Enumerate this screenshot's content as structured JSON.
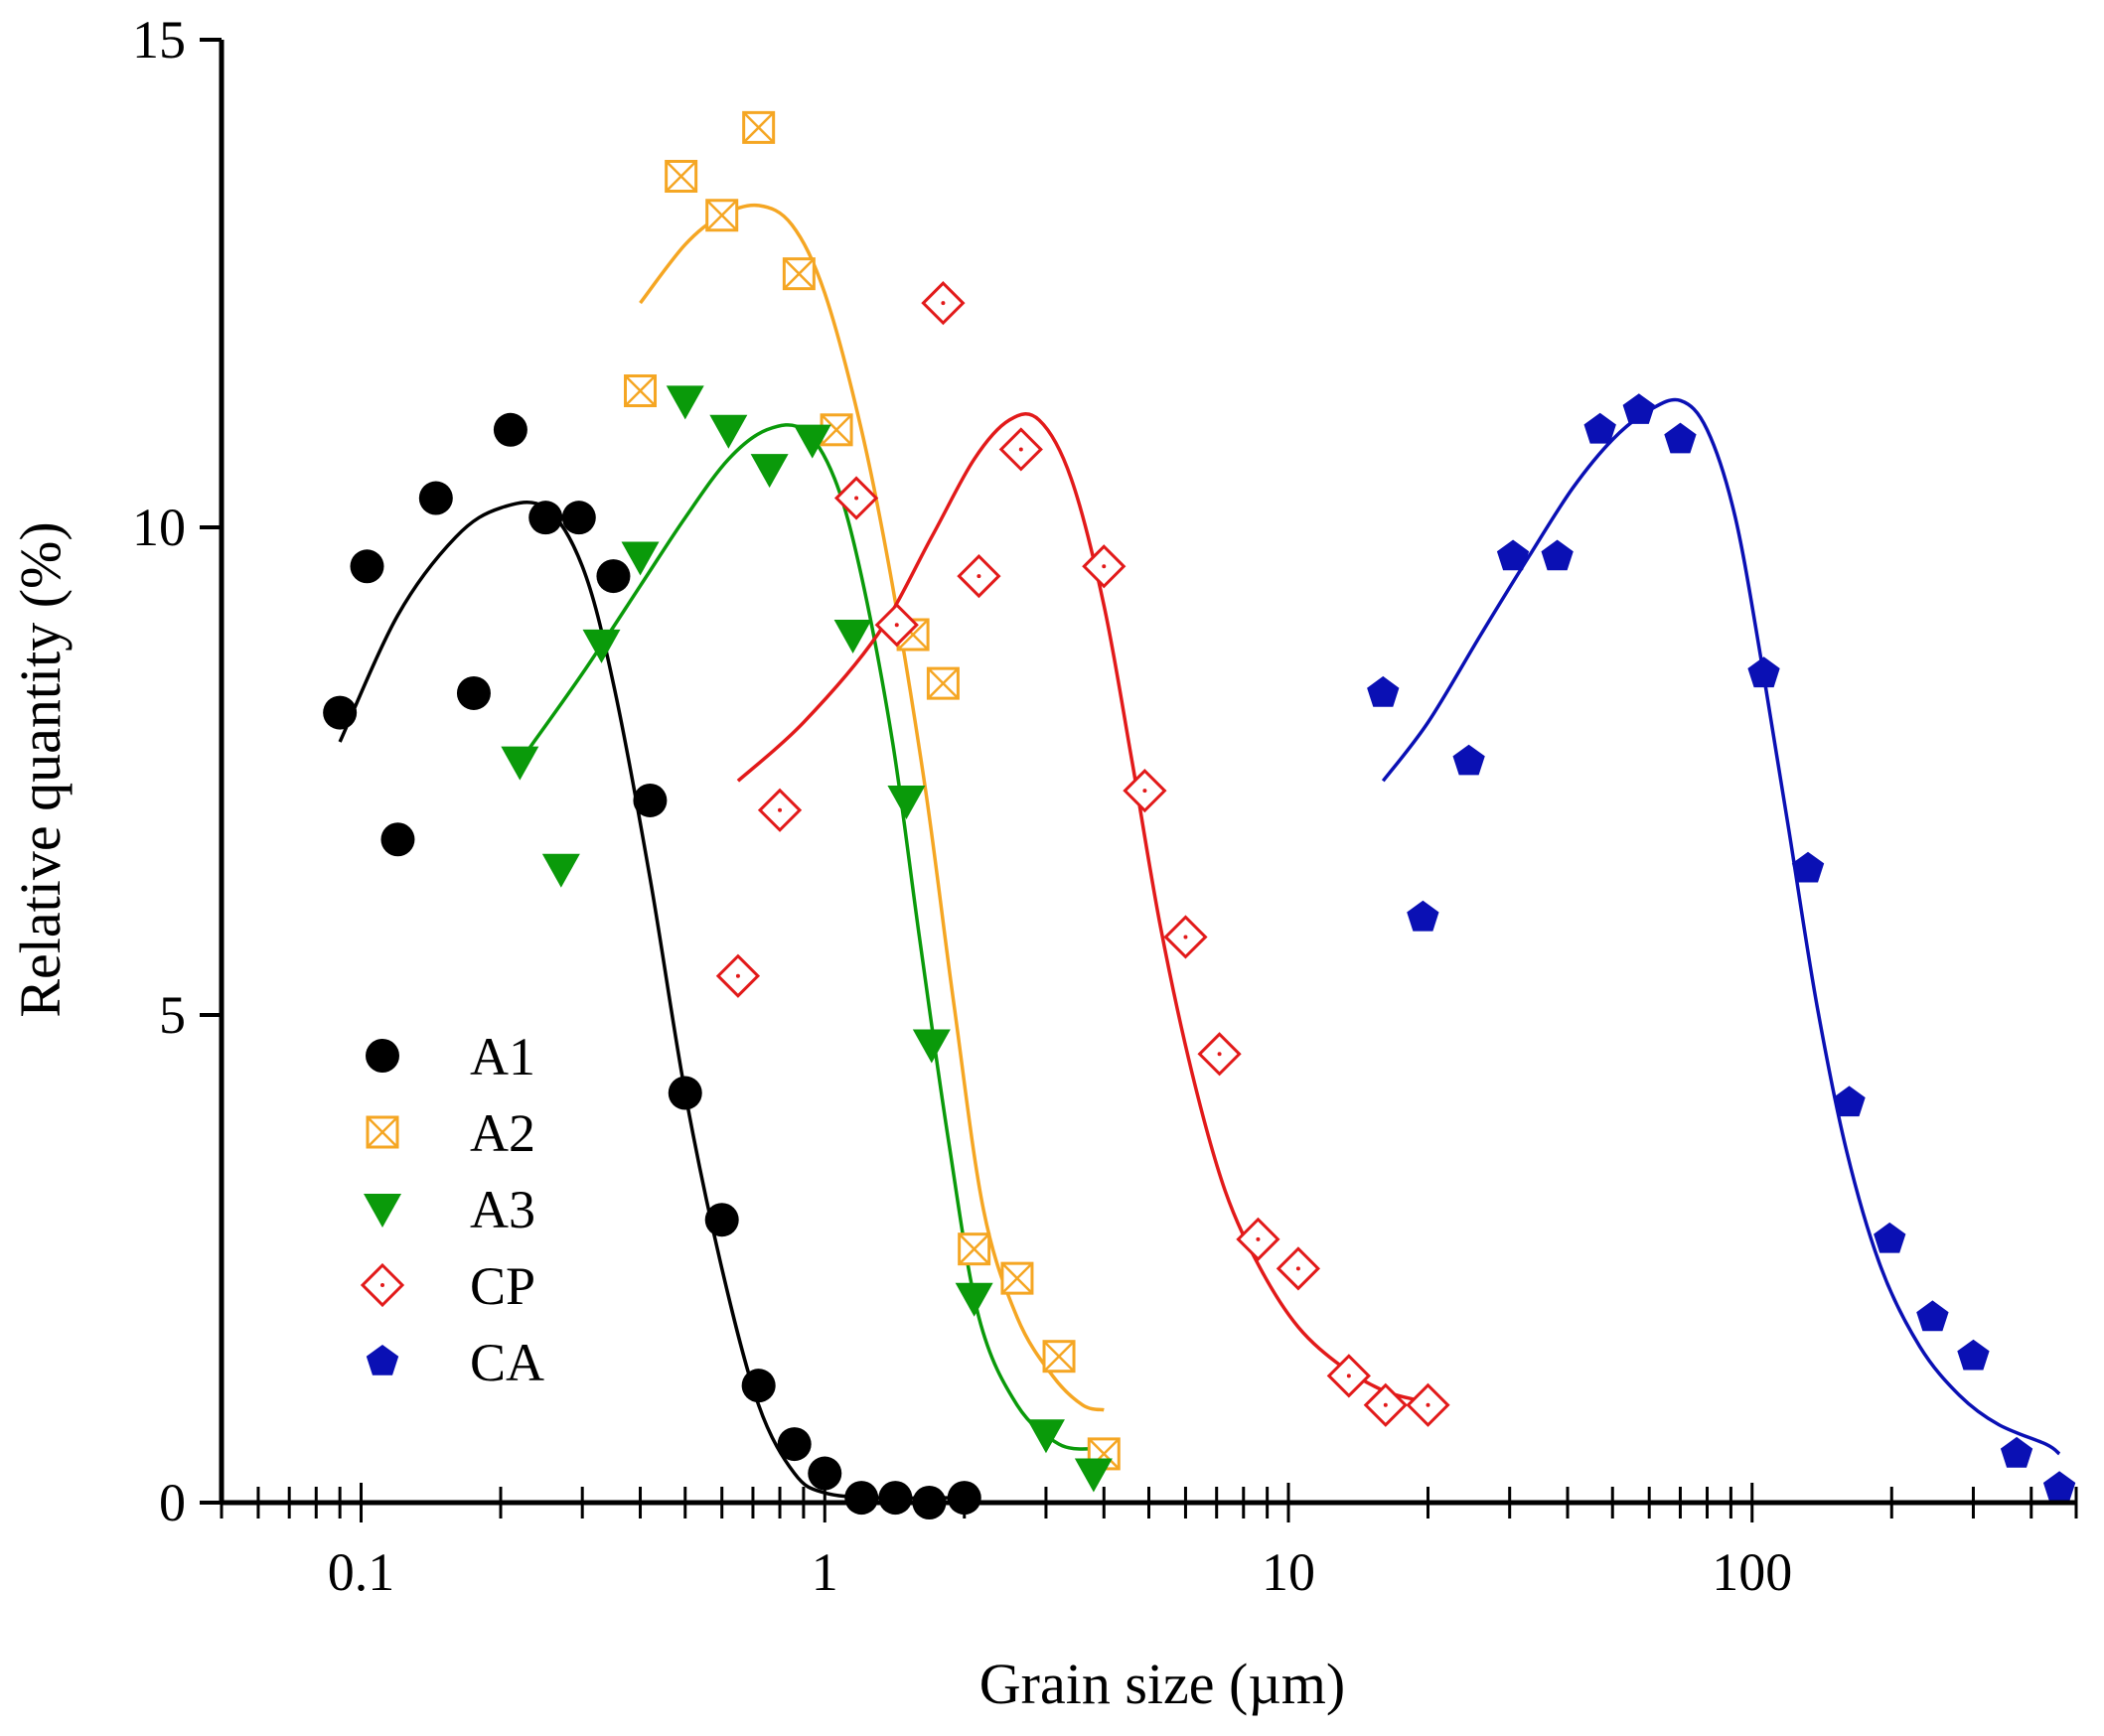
{
  "chart_data": {
    "type": "scatter",
    "title": "",
    "xlabel": "Grain size (µm)",
    "ylabel": "Relative quantity (%)",
    "xscale": "log",
    "xlim": [
      0.05,
      500
    ],
    "ylim": [
      0,
      15
    ],
    "x_ticks": [
      {
        "value": 0.1,
        "label": "0.1"
      },
      {
        "value": 1,
        "label": "1"
      },
      {
        "value": 10,
        "label": "10"
      },
      {
        "value": 100,
        "label": "100"
      }
    ],
    "y_ticks": [
      {
        "value": 0,
        "label": "0"
      },
      {
        "value": 5,
        "label": "5"
      },
      {
        "value": 10,
        "label": "10"
      },
      {
        "value": 15,
        "label": "15"
      }
    ],
    "grid": false,
    "legend_position": "middle-left",
    "series": [
      {
        "name": "A1",
        "marker": "circle-filled",
        "color": "#000000",
        "points": [
          [
            0.09,
            8.1
          ],
          [
            0.103,
            9.6
          ],
          [
            0.12,
            6.8
          ],
          [
            0.145,
            10.3
          ],
          [
            0.175,
            8.3
          ],
          [
            0.21,
            11.0
          ],
          [
            0.25,
            10.1
          ],
          [
            0.295,
            10.1
          ],
          [
            0.35,
            9.5
          ],
          [
            0.42,
            7.2
          ],
          [
            0.5,
            4.2
          ],
          [
            0.6,
            2.9
          ],
          [
            0.72,
            1.2
          ],
          [
            0.86,
            0.6
          ],
          [
            1.0,
            0.3
          ],
          [
            1.2,
            0.05
          ],
          [
            1.42,
            0.05
          ],
          [
            1.68,
            0.0
          ],
          [
            2.0,
            0.05
          ]
        ],
        "fit": [
          [
            0.09,
            7.8
          ],
          [
            0.12,
            9.1
          ],
          [
            0.16,
            9.9
          ],
          [
            0.2,
            10.2
          ],
          [
            0.25,
            10.2
          ],
          [
            0.3,
            9.6
          ],
          [
            0.35,
            8.4
          ],
          [
            0.42,
            6.4
          ],
          [
            0.5,
            4.2
          ],
          [
            0.6,
            2.4
          ],
          [
            0.72,
            1.0
          ],
          [
            0.86,
            0.3
          ],
          [
            1.0,
            0.1
          ],
          [
            1.3,
            0.05
          ],
          [
            1.8,
            0.05
          ],
          [
            2.0,
            0.05
          ]
        ]
      },
      {
        "name": "A2",
        "marker": "square-x-open",
        "color": "#f5a623",
        "points": [
          [
            0.4,
            11.4
          ],
          [
            0.49,
            13.6
          ],
          [
            0.6,
            13.2
          ],
          [
            0.72,
            14.1
          ],
          [
            0.88,
            12.6
          ],
          [
            1.06,
            11.0
          ],
          [
            1.55,
            8.9
          ],
          [
            1.8,
            8.4
          ],
          [
            2.1,
            2.6
          ],
          [
            2.6,
            2.3
          ],
          [
            3.2,
            1.5
          ],
          [
            4.0,
            0.5
          ]
        ],
        "fit": [
          [
            0.4,
            12.3
          ],
          [
            0.5,
            12.9
          ],
          [
            0.6,
            13.2
          ],
          [
            0.72,
            13.3
          ],
          [
            0.85,
            13.1
          ],
          [
            1.0,
            12.4
          ],
          [
            1.2,
            11.0
          ],
          [
            1.4,
            9.4
          ],
          [
            1.65,
            7.3
          ],
          [
            1.9,
            5.1
          ],
          [
            2.2,
            3.0
          ],
          [
            2.6,
            1.9
          ],
          [
            3.1,
            1.3
          ],
          [
            3.6,
            1.0
          ],
          [
            4.0,
            0.95
          ]
        ]
      },
      {
        "name": "A3",
        "marker": "triangle-down-filled",
        "color": "#0a9a0a",
        "points": [
          [
            0.22,
            7.6
          ],
          [
            0.27,
            6.5
          ],
          [
            0.33,
            8.8
          ],
          [
            0.4,
            9.7
          ],
          [
            0.5,
            11.3
          ],
          [
            0.62,
            11.0
          ],
          [
            0.76,
            10.6
          ],
          [
            0.94,
            10.9
          ],
          [
            1.15,
            8.9
          ],
          [
            1.5,
            7.2
          ],
          [
            1.7,
            4.7
          ],
          [
            2.1,
            2.1
          ],
          [
            3.0,
            0.7
          ],
          [
            3.8,
            0.3
          ]
        ],
        "fit": [
          [
            0.22,
            7.6
          ],
          [
            0.3,
            8.5
          ],
          [
            0.4,
            9.4
          ],
          [
            0.5,
            10.1
          ],
          [
            0.62,
            10.7
          ],
          [
            0.75,
            11.0
          ],
          [
            0.9,
            11.0
          ],
          [
            1.05,
            10.5
          ],
          [
            1.2,
            9.5
          ],
          [
            1.4,
            7.8
          ],
          [
            1.6,
            5.8
          ],
          [
            1.85,
            3.7
          ],
          [
            2.15,
            1.9
          ],
          [
            2.6,
            1.0
          ],
          [
            3.2,
            0.6
          ],
          [
            3.8,
            0.55
          ]
        ]
      },
      {
        "name": "CP",
        "marker": "diamond-dot-open",
        "color": "#e21a1a",
        "points": [
          [
            0.65,
            5.4
          ],
          [
            0.8,
            7.1
          ],
          [
            1.17,
            10.3
          ],
          [
            1.43,
            9.0
          ],
          [
            1.8,
            12.3
          ],
          [
            2.15,
            9.5
          ],
          [
            2.65,
            10.8
          ],
          [
            4.0,
            9.6
          ],
          [
            4.9,
            7.3
          ],
          [
            6.0,
            5.8
          ],
          [
            7.1,
            4.6
          ],
          [
            8.6,
            2.7
          ],
          [
            10.5,
            2.4
          ],
          [
            13.5,
            1.3
          ],
          [
            16.2,
            1.0
          ],
          [
            20.0,
            1.0
          ]
        ],
        "fit": [
          [
            0.65,
            7.4
          ],
          [
            0.9,
            8.0
          ],
          [
            1.3,
            8.9
          ],
          [
            1.7,
            9.9
          ],
          [
            2.1,
            10.7
          ],
          [
            2.5,
            11.1
          ],
          [
            2.9,
            11.1
          ],
          [
            3.4,
            10.5
          ],
          [
            4.0,
            9.2
          ],
          [
            4.6,
            7.6
          ],
          [
            5.3,
            5.9
          ],
          [
            6.2,
            4.4
          ],
          [
            7.3,
            3.2
          ],
          [
            8.7,
            2.4
          ],
          [
            10.5,
            1.8
          ],
          [
            13.0,
            1.4
          ],
          [
            16.0,
            1.15
          ],
          [
            19.0,
            1.05
          ]
        ]
      },
      {
        "name": "CA",
        "marker": "pentagon-filled",
        "color": "#0a10b4",
        "points": [
          [
            16.0,
            8.3
          ],
          [
            19.5,
            6.0
          ],
          [
            24.5,
            7.6
          ],
          [
            30.5,
            9.7
          ],
          [
            38.0,
            9.7
          ],
          [
            47.0,
            11.0
          ],
          [
            57.0,
            11.2
          ],
          [
            70.0,
            10.9
          ],
          [
            106.0,
            8.5
          ],
          [
            132.0,
            6.5
          ],
          [
            162.0,
            4.1
          ],
          [
            198.0,
            2.7
          ],
          [
            245.0,
            1.9
          ],
          [
            300.0,
            1.5
          ],
          [
            372.0,
            0.5
          ],
          [
            460.0,
            0.15
          ]
        ],
        "fit": [
          [
            16.0,
            7.4
          ],
          [
            20.0,
            8.0
          ],
          [
            26.0,
            8.9
          ],
          [
            33.0,
            9.7
          ],
          [
            41.0,
            10.4
          ],
          [
            50.0,
            10.9
          ],
          [
            60.0,
            11.2
          ],
          [
            70.0,
            11.3
          ],
          [
            80.0,
            11.0
          ],
          [
            92.0,
            10.1
          ],
          [
            105.0,
            8.6
          ],
          [
            120.0,
            6.9
          ],
          [
            138.0,
            5.1
          ],
          [
            160.0,
            3.6
          ],
          [
            190.0,
            2.4
          ],
          [
            230.0,
            1.6
          ],
          [
            280.0,
            1.1
          ],
          [
            340.0,
            0.8
          ],
          [
            430.0,
            0.6
          ],
          [
            460.0,
            0.5
          ]
        ]
      }
    ]
  }
}
